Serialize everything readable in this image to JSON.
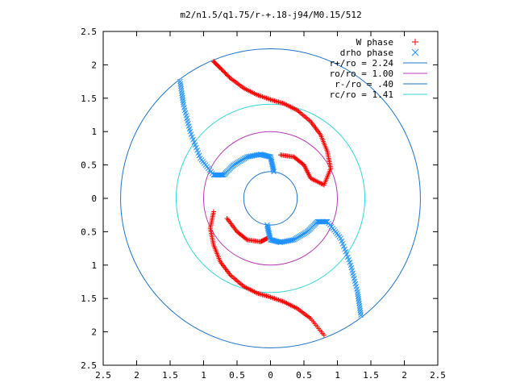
{
  "chart_data": {
    "type": "scatter",
    "title": "m2/n1.5/q1.75/r-+.18-j94/M0.15/512",
    "xlim": [
      -2.5,
      2.5
    ],
    "ylim": [
      -2.5,
      2.5
    ],
    "x_tick_values": [
      -2.5,
      -2,
      -1.5,
      -1,
      -0.5,
      0,
      0.5,
      1,
      1.5,
      2,
      2.5
    ],
    "x_tick_labels": [
      "2.5",
      "2",
      "1.5",
      "1",
      "0.5",
      "0",
      "0.5",
      "1",
      "1.5",
      "2",
      "2.5"
    ],
    "y_tick_values": [
      2.5,
      2,
      1.5,
      1,
      0.5,
      0,
      -0.5,
      -1,
      -1.5,
      -2,
      -2.5
    ],
    "y_tick_labels": [
      "2.5",
      "2",
      "1.5",
      "1",
      "0.5",
      "0",
      "0.5",
      "1",
      "1.5",
      "2",
      "2.5"
    ],
    "legend_position": "top-right",
    "series": [
      {
        "name": "W phase",
        "marker": "+",
        "color": "#ff0000",
        "points": [
          [
            -0.85,
            2.05
          ],
          [
            -0.75,
            1.95
          ],
          [
            -0.6,
            1.8
          ],
          [
            -0.4,
            1.65
          ],
          [
            -0.2,
            1.55
          ],
          [
            0,
            1.48
          ],
          [
            0.2,
            1.42
          ],
          [
            0.4,
            1.32
          ],
          [
            0.6,
            1.15
          ],
          [
            0.75,
            0.95
          ],
          [
            0.85,
            0.7
          ],
          [
            0.9,
            0.45
          ],
          [
            0.8,
            0.2
          ],
          [
            0.6,
            0.3
          ],
          [
            0.5,
            0.5
          ],
          [
            0.35,
            0.62
          ],
          [
            0.15,
            0.65
          ],
          [
            -0.85,
            -0.2
          ],
          [
            -0.9,
            -0.45
          ],
          [
            -0.85,
            -0.7
          ],
          [
            -0.75,
            -0.95
          ],
          [
            -0.6,
            -1.15
          ],
          [
            -0.4,
            -1.32
          ],
          [
            -0.2,
            -1.42
          ],
          [
            0,
            -1.48
          ],
          [
            0.2,
            -1.55
          ],
          [
            0.4,
            -1.65
          ],
          [
            0.6,
            -1.8
          ],
          [
            0.8,
            -2.05
          ],
          [
            -0.65,
            -0.3
          ],
          [
            -0.5,
            -0.5
          ],
          [
            -0.35,
            -0.62
          ],
          [
            -0.15,
            -0.65
          ],
          [
            -0.05,
            -0.6
          ]
        ]
      },
      {
        "name": "drho phase",
        "marker": "x",
        "color": "#1e90ff",
        "points": [
          [
            -1.35,
            1.75
          ],
          [
            -1.3,
            1.4
          ],
          [
            -1.2,
            1.0
          ],
          [
            -1.05,
            0.6
          ],
          [
            -0.85,
            0.35
          ],
          [
            -0.7,
            0.35
          ],
          [
            -0.55,
            0.5
          ],
          [
            -0.35,
            0.62
          ],
          [
            -0.15,
            0.66
          ],
          [
            0,
            0.62
          ],
          [
            0.05,
            0.4
          ],
          [
            1.35,
            -1.75
          ],
          [
            1.3,
            -1.4
          ],
          [
            1.2,
            -1.0
          ],
          [
            1.05,
            -0.6
          ],
          [
            0.85,
            -0.35
          ],
          [
            0.7,
            -0.35
          ],
          [
            0.55,
            -0.5
          ],
          [
            0.35,
            -0.62
          ],
          [
            0.15,
            -0.66
          ],
          [
            0,
            -0.62
          ],
          [
            -0.05,
            -0.4
          ]
        ]
      },
      {
        "name": "r+/ro = 2.24",
        "type": "circle",
        "radius": 2.24,
        "color": "#1e74c8"
      },
      {
        "name": "ro/ro = 1.00",
        "type": "circle",
        "radius": 1.0,
        "color": "#b43ab4"
      },
      {
        "name": "r-/ro = .40",
        "type": "circle",
        "radius": 0.4,
        "color": "#1e74c8"
      },
      {
        "name": "rc/ro = 1.41",
        "type": "circle",
        "radius": 1.41,
        "color": "#33d6d6"
      }
    ]
  }
}
